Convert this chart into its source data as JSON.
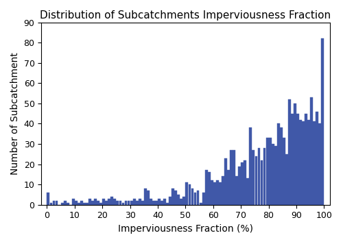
{
  "title": "Distribution of Subcatchments Imperviousness Fraction",
  "xlabel": "Imperviousness Fraction (%)",
  "ylabel": "Number of Subcatchment",
  "ylim": [
    0,
    90
  ],
  "xlim": [
    -2,
    102
  ],
  "bar_color": "#4058a8",
  "bar_edgecolor": "#4058a8",
  "bar_linewidth": 0.3,
  "bar_values": [
    6,
    1,
    2,
    2,
    0,
    1,
    2,
    1,
    0,
    3,
    2,
    1,
    2,
    1,
    1,
    3,
    2,
    3,
    2,
    1,
    3,
    2,
    3,
    4,
    3,
    2,
    2,
    1,
    2,
    2,
    2,
    3,
    2,
    3,
    2,
    8,
    7,
    3,
    2,
    2,
    3,
    2,
    3,
    1,
    4,
    8,
    7,
    5,
    3,
    4,
    11,
    10,
    8,
    6,
    7,
    1,
    6,
    17,
    16,
    12,
    11,
    12,
    11,
    14,
    23,
    17,
    27,
    27,
    14,
    19,
    21,
    22,
    13,
    38,
    27,
    24,
    28,
    22,
    28,
    33,
    33,
    30,
    29,
    40,
    38,
    33,
    25,
    52,
    45,
    50,
    45,
    42,
    41,
    45,
    42,
    53,
    41,
    46,
    40,
    82
  ],
  "xticks": [
    0,
    10,
    20,
    30,
    40,
    50,
    60,
    70,
    80,
    90,
    100
  ],
  "yticks": [
    0,
    10,
    20,
    30,
    40,
    50,
    60,
    70,
    80,
    90
  ],
  "figsize": [
    5.0,
    3.56
  ],
  "dpi": 100
}
